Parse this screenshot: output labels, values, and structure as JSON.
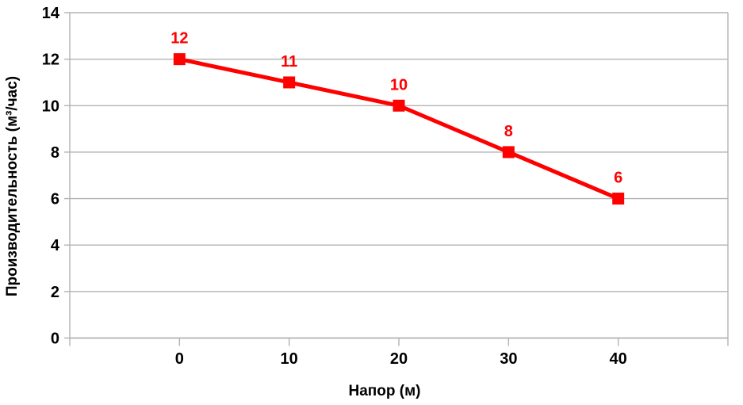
{
  "chart_data": {
    "type": "line",
    "title": "",
    "xlabel": "Напор (м)",
    "ylabel": "Производительность (м³/час)",
    "x": [
      0,
      10,
      20,
      30,
      40
    ],
    "series": [
      {
        "values": [
          12,
          11,
          10,
          8,
          6
        ],
        "data_labels": [
          "12",
          "11",
          "10",
          "8",
          "6"
        ],
        "color": "#ff0000",
        "marker": "square",
        "marker_size": 15,
        "line_width": 5
      }
    ],
    "xlim": [
      -10,
      50
    ],
    "ylim": [
      0,
      14
    ],
    "x_ticks": [
      -10,
      0,
      10,
      20,
      30,
      40,
      50
    ],
    "x_tick_labels": [
      "",
      "0",
      "10",
      "20",
      "30",
      "40",
      ""
    ],
    "y_ticks": [
      0,
      2,
      4,
      6,
      8,
      10,
      12,
      14
    ],
    "y_tick_labels": [
      "0",
      "2",
      "4",
      "6",
      "8",
      "10",
      "12",
      "14"
    ],
    "grid": "horizontal-only",
    "legend": "none",
    "colors": {
      "background": "#ffffff",
      "grid": "#b3b3b3",
      "axis": "#b3b3b3",
      "tick_text": "#000000",
      "series": "#ff0000",
      "data_label_text": "#ff0000"
    }
  }
}
